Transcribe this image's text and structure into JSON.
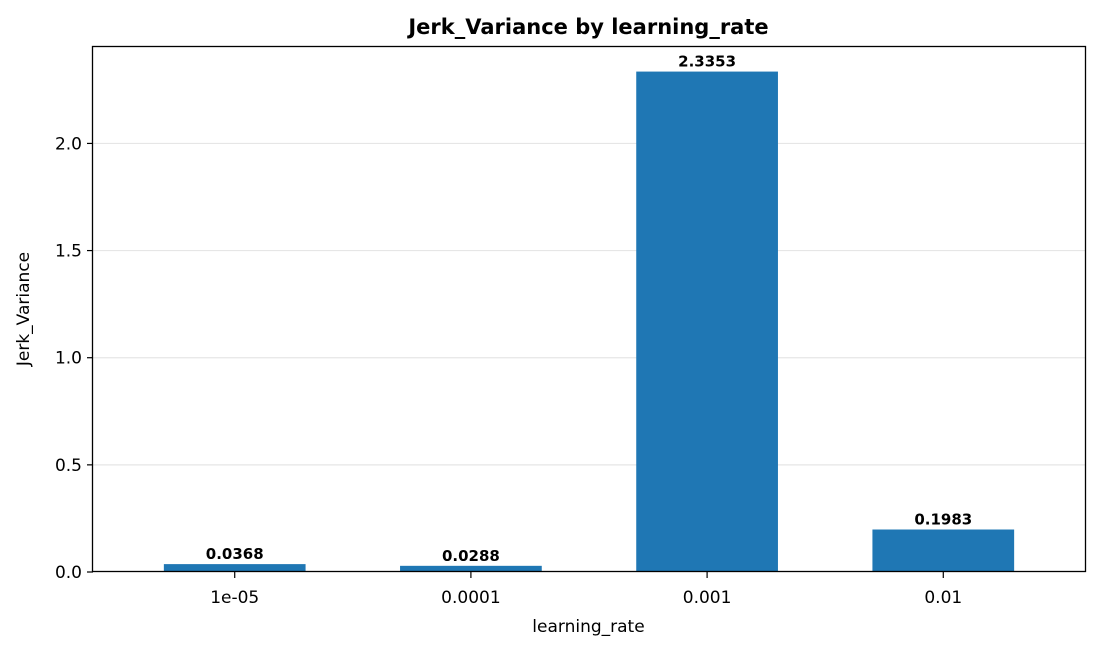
{
  "chart_data": {
    "type": "bar",
    "title": "Jerk_Variance by learning_rate",
    "xlabel": "learning_rate",
    "ylabel": "Jerk_Variance",
    "categories": [
      "1e-05",
      "0.0001",
      "0.001",
      "0.01"
    ],
    "values": [
      0.0368,
      0.0288,
      2.3353,
      0.1983
    ],
    "value_labels": [
      "0.0368",
      "0.0288",
      "2.3353",
      "0.1983"
    ],
    "ylim": [
      0,
      2.45
    ],
    "yticks": [
      0.0,
      0.5,
      1.0,
      1.5,
      2.0
    ],
    "ytick_labels": [
      "0.0",
      "0.5",
      "1.0",
      "1.5",
      "2.0"
    ],
    "grid": "y-major",
    "bar_color": "#1f77b4",
    "grid_color": "#e6e6e6"
  }
}
